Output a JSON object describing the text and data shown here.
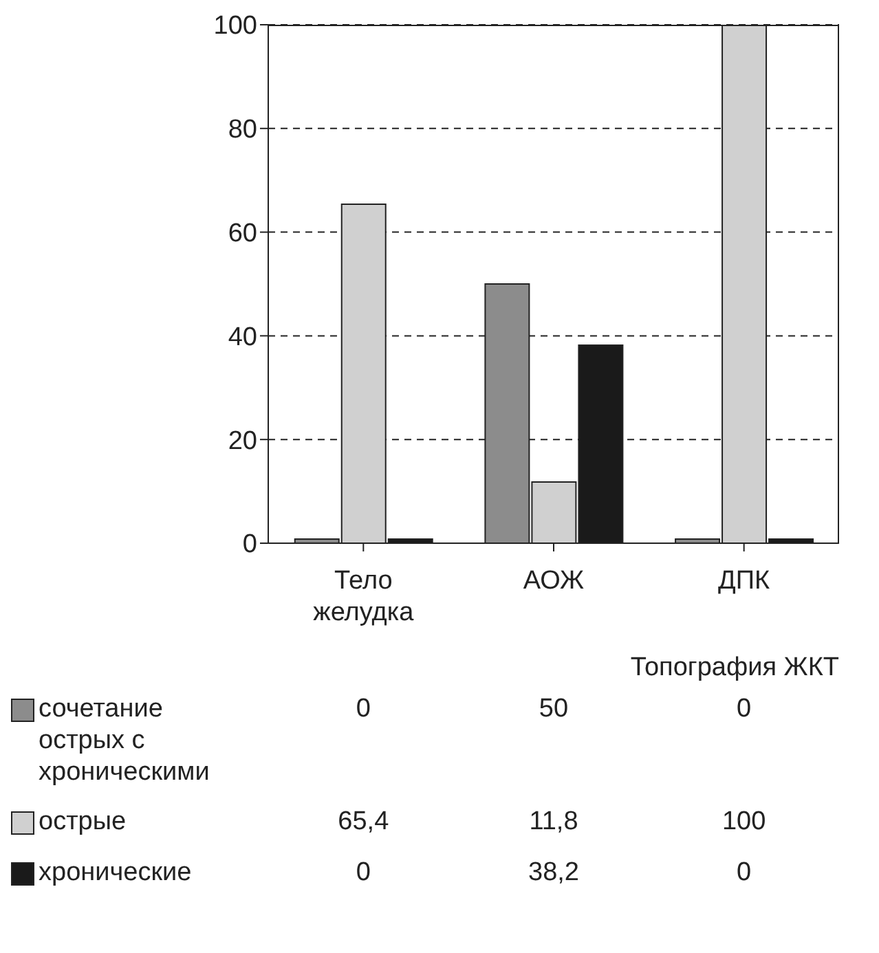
{
  "chart_data": {
    "type": "bar",
    "xlabel": "Топография ЖКТ",
    "categories": [
      "Тело желудка",
      "АОЖ",
      "ДПК"
    ],
    "series": [
      {
        "name": "сочетание острых с хроническими",
        "color": "#8c8c8c",
        "values": [
          0,
          50,
          0
        ],
        "value_labels": [
          "0",
          "50",
          "0"
        ]
      },
      {
        "name": "острые",
        "color": "#d0d0d0",
        "values": [
          65.4,
          11.8,
          100
        ],
        "value_labels": [
          "65,4",
          "11,8",
          "100"
        ]
      },
      {
        "name": "хронические",
        "color": "#1a1a1a",
        "values": [
          0,
          38.2,
          0
        ],
        "value_labels": [
          "0",
          "38,2",
          "0"
        ]
      }
    ],
    "ylim": [
      0,
      100
    ],
    "yticks": [
      0,
      20,
      40,
      60,
      80,
      100
    ],
    "grid": "y",
    "legend": "bottom"
  }
}
